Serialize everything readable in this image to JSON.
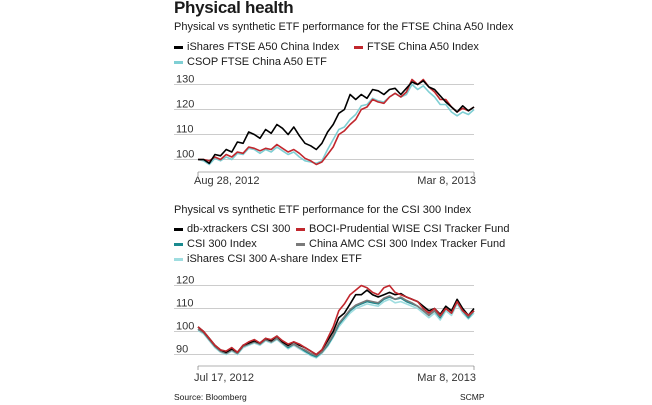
{
  "title": "Physical health",
  "source": "Source: Bloomberg",
  "credit": "SCMP",
  "charts": [
    {
      "subtitle": "Physical vs synthetic ETF performance for the FTSE China A50 Index",
      "legend": [
        {
          "label": "iShares FTSE A50 China Index",
          "color": "#000000"
        },
        {
          "label": "FTSE China A50 Index",
          "color": "#c1272d"
        },
        {
          "label": "CSOP FTSE China A50 ETF",
          "color": "#7fcfd4"
        }
      ]
    },
    {
      "subtitle": "Physical vs synthetic ETF performance for the CSI 300 Index",
      "legend": [
        {
          "label": "db-xtrackers CSI 300",
          "color": "#000000"
        },
        {
          "label": "BOCI-Prudential WISE CSI Tracker Fund",
          "color": "#c1272d"
        },
        {
          "label": "CSI 300 Index",
          "color": "#1a8a8f"
        },
        {
          "label": "China AMC CSI 300 Index Tracker Fund",
          "color": "#7a7a7a"
        },
        {
          "label": "iShares CSI 300 A-share Index ETF",
          "color": "#9fdde0"
        }
      ]
    }
  ],
  "chart_data": [
    {
      "type": "line",
      "title": "Physical vs synthetic ETF performance for the FTSE China A50 Index",
      "x_start_label": "Aug 28, 2012",
      "x_end_label": "Mar 8, 2013",
      "ylim": [
        95,
        135
      ],
      "yticks": [
        100,
        110,
        120,
        130
      ],
      "grid": true,
      "series": [
        {
          "name": "iShares FTSE A50 China Index",
          "color": "#000000",
          "values": [
            100,
            100,
            98.5,
            102,
            101.5,
            104,
            103,
            107,
            106.5,
            111,
            110,
            108.5,
            112,
            110.5,
            114,
            112.5,
            110,
            113,
            109.5,
            106.5,
            105.5,
            104,
            106.5,
            111,
            114,
            118.5,
            120,
            126,
            124,
            126,
            124.5,
            128,
            127.5,
            126,
            128,
            128.5,
            126,
            128.5,
            131,
            130,
            131.5,
            129,
            128,
            125.5,
            123,
            121,
            119,
            121.5,
            119.5,
            121
          ]
        },
        {
          "name": "FTSE China A50 Index",
          "color": "#c1272d",
          "values": [
            100,
            100,
            99.5,
            101,
            100,
            102,
            101,
            103,
            102.5,
            105,
            104.5,
            103.5,
            104.5,
            104,
            106,
            104.5,
            103,
            104,
            102.5,
            100.5,
            99.5,
            98,
            99,
            102,
            105,
            110,
            111.5,
            114,
            116,
            120,
            121,
            124,
            123,
            122.5,
            125,
            126.5,
            125,
            127,
            132,
            130,
            132,
            129,
            127,
            124,
            124,
            121,
            119,
            120.5,
            119.5,
            121
          ]
        },
        {
          "name": "CSOP FTSE China A50 ETF",
          "color": "#7fcfd4",
          "values": [
            100,
            99.5,
            98,
            100.5,
            99.5,
            101,
            100,
            102.5,
            102,
            104.5,
            104,
            102.5,
            104,
            103,
            105,
            103.5,
            102,
            103,
            101,
            99.5,
            99,
            98.5,
            99.5,
            104,
            108,
            112,
            113,
            116,
            118,
            121.5,
            122,
            124.5,
            123.5,
            123,
            125,
            126.5,
            125,
            126,
            130,
            128,
            129.5,
            127,
            125,
            122,
            122,
            119,
            117.5,
            119,
            118,
            120
          ]
        }
      ]
    },
    {
      "type": "line",
      "title": "Physical vs synthetic ETF performance for the CSI 300 Index",
      "x_start_label": "Jul 17, 2012",
      "x_end_label": "Mar 8, 2013",
      "ylim": [
        85,
        125
      ],
      "yticks": [
        90,
        100,
        110,
        120
      ],
      "grid": true,
      "series": [
        {
          "name": "db-xtrackers CSI 300",
          "color": "#000000",
          "values": [
            102,
            100,
            97,
            94,
            92,
            91,
            92.5,
            91,
            94,
            95,
            96,
            95,
            97,
            96,
            98,
            95.5,
            94,
            95.5,
            94,
            93,
            91.5,
            90,
            92,
            96,
            100,
            106,
            108,
            112,
            116,
            116,
            118,
            116,
            115,
            116,
            117,
            116,
            116.5,
            115,
            114,
            113,
            111,
            109,
            110,
            107.5,
            111,
            109,
            114,
            110,
            107,
            110
          ]
        },
        {
          "name": "BOCI-Prudential WISE CSI Tracker Fund",
          "color": "#c1272d",
          "values": [
            102,
            100,
            97,
            94,
            92,
            91.5,
            93,
            91,
            94,
            95.5,
            96.5,
            95,
            97,
            96.5,
            98,
            96,
            94.5,
            95.5,
            94.5,
            93,
            91.5,
            90,
            92,
            97,
            102,
            109,
            112,
            116,
            118,
            120,
            119,
            117,
            116,
            119,
            120,
            117,
            116,
            115,
            114,
            113,
            110,
            108,
            110,
            107,
            110,
            108,
            113,
            109,
            107,
            109
          ]
        },
        {
          "name": "CSI 300 Index",
          "color": "#1a8a8f",
          "values": [
            101,
            99.5,
            96.5,
            93.5,
            91.5,
            90.5,
            92,
            90.5,
            93.5,
            94.5,
            95.5,
            94.5,
            96.5,
            95.5,
            97,
            95,
            93,
            94.5,
            93,
            91.5,
            90,
            89,
            91,
            94,
            98,
            103,
            106,
            109,
            111,
            112,
            113,
            112.5,
            112,
            114,
            115,
            114,
            114.5,
            113,
            112,
            111,
            109,
            107,
            109,
            106,
            110,
            108,
            113,
            109,
            106,
            109
          ]
        },
        {
          "name": "China AMC CSI 300 Index Tracker Fund",
          "color": "#7a7a7a",
          "values": [
            101,
            99.5,
            96.5,
            93.5,
            91.5,
            90.5,
            92,
            90.5,
            93.5,
            94.5,
            95.5,
            94.5,
            96.5,
            95.5,
            97,
            95,
            93.5,
            94.5,
            93,
            92,
            90.5,
            89.5,
            91,
            94.5,
            98.5,
            103.5,
            106.5,
            109.5,
            111.5,
            112.5,
            113.5,
            113,
            112.5,
            114.5,
            115.5,
            114,
            115,
            113.5,
            112.5,
            111,
            109,
            107,
            109,
            106.5,
            110,
            108,
            113,
            109,
            106.5,
            109
          ]
        },
        {
          "name": "iShares CSI 300 A-share Index ETF",
          "color": "#9fdde0",
          "values": [
            100.5,
            99,
            96,
            93,
            91,
            90,
            91.5,
            90,
            93,
            94,
            95,
            94,
            96,
            95,
            96.5,
            94.5,
            92.5,
            94,
            92.5,
            91,
            89.5,
            88.5,
            90.5,
            93.5,
            97.5,
            102,
            105,
            108,
            110,
            111,
            112,
            111.5,
            111,
            113,
            114,
            112.5,
            113,
            112,
            111,
            110,
            108,
            106,
            108,
            105,
            109,
            107,
            112,
            108,
            105.5,
            108
          ]
        }
      ]
    }
  ]
}
